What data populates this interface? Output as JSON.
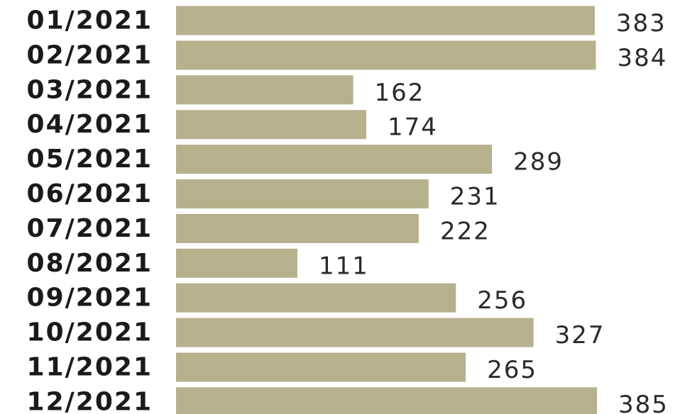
{
  "chart_data": {
    "type": "bar",
    "orientation": "horizontal",
    "categories": [
      "01/2021",
      "02/2021",
      "03/2021",
      "04/2021",
      "05/2021",
      "06/2021",
      "07/2021",
      "08/2021",
      "09/2021",
      "10/2021",
      "11/2021",
      "12/2021"
    ],
    "values": [
      383,
      384,
      162,
      174,
      289,
      231,
      222,
      111,
      256,
      327,
      265,
      385
    ],
    "title": "",
    "xlabel": "",
    "ylabel": "",
    "xlim": [
      0,
      385
    ],
    "grid": false,
    "legend": "none",
    "bar_color": "#b5b18d"
  }
}
